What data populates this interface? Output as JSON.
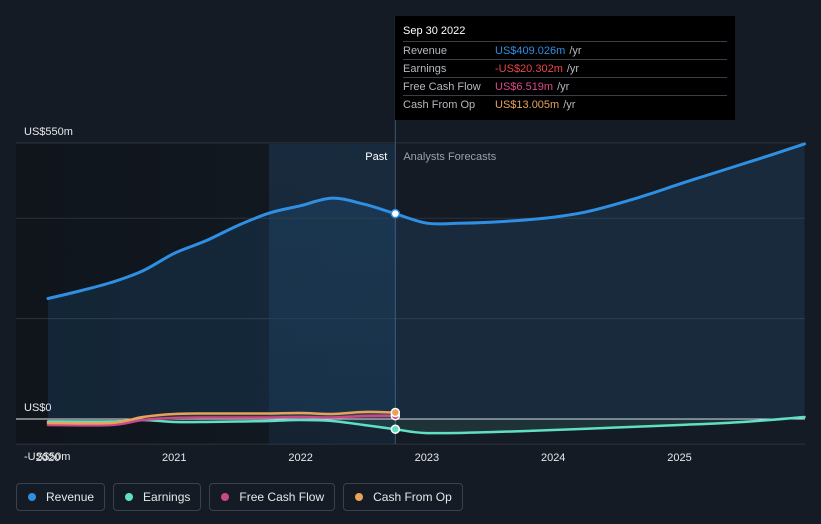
{
  "chart_data": {
    "type": "line",
    "title": "",
    "xlabel": "",
    "ylabel": "",
    "x_ticks": [
      "2020",
      "2021",
      "2022",
      "2023",
      "2024",
      "2025"
    ],
    "xlim": [
      2019.77,
      2025.99
    ],
    "ylim": [
      -70,
      580
    ],
    "y_tick_labels": [
      {
        "value": 550,
        "label": "US$550m"
      },
      {
        "value": 0,
        "label": "US$0"
      },
      {
        "value": -50,
        "label": "-US$50m"
      }
    ],
    "gridlines": [
      550,
      400,
      200,
      0,
      -50
    ],
    "divider_x": 2022.75,
    "past_label": "Past",
    "forecast_label": "Analysts Forecasts",
    "highlight_range": [
      2021.75,
      2022.75
    ],
    "series": [
      {
        "name": "Revenue",
        "color": "#2f8fe3",
        "fill": true,
        "x": [
          2020.0,
          2020.25,
          2020.5,
          2020.75,
          2021.0,
          2021.25,
          2021.5,
          2021.75,
          2022.0,
          2022.25,
          2022.5,
          2022.75,
          2023.0,
          2023.25,
          2023.5,
          2023.75,
          2024.0,
          2024.25,
          2024.5,
          2024.75,
          2025.0,
          2025.25,
          2025.5,
          2025.75,
          2025.99
        ],
        "values": [
          240,
          255,
          272,
          295,
          330,
          355,
          385,
          410,
          425,
          440,
          428,
          409,
          390,
          390,
          392,
          396,
          402,
          412,
          428,
          447,
          468,
          488,
          508,
          528,
          548
        ]
      },
      {
        "name": "Earnings",
        "color": "#5fe0c4",
        "fill": false,
        "x": [
          2020.0,
          2020.5,
          2020.75,
          2021.0,
          2021.25,
          2021.5,
          2021.75,
          2022.0,
          2022.25,
          2022.5,
          2022.75,
          2023.0,
          2023.5,
          2024.0,
          2024.5,
          2025.0,
          2025.5,
          2025.99
        ],
        "values": [
          -5,
          -5,
          -2,
          -6,
          -6,
          -5,
          -4,
          -2,
          -4,
          -12,
          -20.3,
          -28,
          -26,
          -22,
          -17,
          -12,
          -6,
          4
        ]
      },
      {
        "name": "Free Cash Flow",
        "color": "#c9488a",
        "fill": false,
        "x": [
          2020.0,
          2020.5,
          2020.75,
          2021.0,
          2021.25,
          2021.5,
          2021.75,
          2022.0,
          2022.25,
          2022.5,
          2022.75
        ],
        "values": [
          -12,
          -12,
          -2,
          2,
          3,
          3,
          3,
          4,
          3,
          6,
          6.519
        ]
      },
      {
        "name": "Cash From Op",
        "color": "#e8a35a",
        "fill": false,
        "x": [
          2020.0,
          2020.5,
          2020.75,
          2021.0,
          2021.25,
          2021.5,
          2021.75,
          2022.0,
          2022.25,
          2022.5,
          2022.75
        ],
        "values": [
          -8,
          -8,
          4,
          10,
          11,
          11,
          11,
          12,
          10,
          14,
          13.005
        ]
      }
    ]
  },
  "tooltip": {
    "date": "Sep 30 2022",
    "rows": [
      {
        "label": "Revenue",
        "value": "US$409.026m",
        "unit": "/yr",
        "color": "#2f8fe3"
      },
      {
        "label": "Earnings",
        "value": "-US$20.302m",
        "unit": "/yr",
        "color": "#e5484d"
      },
      {
        "label": "Free Cash Flow",
        "value": "US$6.519m",
        "unit": "/yr",
        "color": "#d94a8c"
      },
      {
        "label": "Cash From Op",
        "value": "US$13.005m",
        "unit": "/yr",
        "color": "#e8a35a"
      }
    ]
  },
  "legend": [
    {
      "label": "Revenue",
      "color": "#2f8fe3"
    },
    {
      "label": "Earnings",
      "color": "#5fe0c4"
    },
    {
      "label": "Free Cash Flow",
      "color": "#c9488a"
    },
    {
      "label": "Cash From Op",
      "color": "#e8a35a"
    }
  ]
}
